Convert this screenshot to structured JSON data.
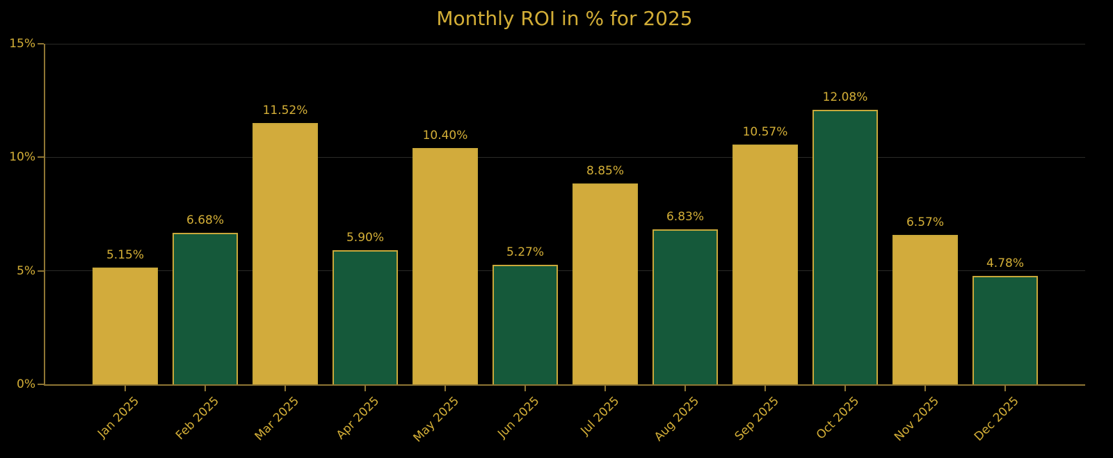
{
  "title": "Monthly ROI in % for 2025",
  "chart_data": {
    "type": "bar",
    "title": "Monthly ROI in % for 2025",
    "categories": [
      "Jan 2025",
      "Feb 2025",
      "Mar 2025",
      "Apr 2025",
      "May 2025",
      "Jun 2025",
      "Jul 2025",
      "Aug 2025",
      "Sep 2025",
      "Oct 2025",
      "Nov 2025",
      "Dec 2025"
    ],
    "values": [
      5.15,
      6.68,
      11.52,
      5.9,
      10.4,
      5.27,
      8.85,
      6.83,
      10.57,
      12.08,
      6.57,
      4.78
    ],
    "value_labels": [
      "5.15%",
      "6.68%",
      "11.52%",
      "5.90%",
      "10.40%",
      "5.27%",
      "8.85%",
      "6.83%",
      "10.57%",
      "12.08%",
      "6.57%",
      "4.78%"
    ],
    "xlabel": "",
    "ylabel": "",
    "ylim": [
      0,
      15
    ],
    "yticks": [
      {
        "value": 0,
        "label": "0%"
      },
      {
        "value": 5,
        "label": "5%"
      },
      {
        "value": 10,
        "label": "10%"
      },
      {
        "value": 15,
        "label": "15%"
      }
    ],
    "grid": true,
    "legend": null,
    "x_tick_rotation_deg": 45,
    "bar_palette_alternating": [
      "#d2ab3c",
      "#15593a"
    ],
    "colors": {
      "background": "#000000",
      "text_gold": "#d4af37",
      "bar_gold": "#d2ab3c",
      "bar_green": "#15593a",
      "bar_edge": "#c9a83a",
      "axis_spine": "#8f7634",
      "gridline": "#2b2b27"
    }
  }
}
